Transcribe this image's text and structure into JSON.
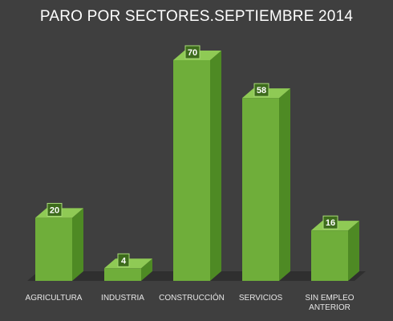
{
  "chart_data": {
    "type": "bar",
    "title": "PARO POR SECTORES.SEPTIEMBRE 2014",
    "categories": [
      "AGRICULTURA",
      "INDUSTRIA",
      "CONSTRUCCIÓN",
      "SERVICIOS",
      "SIN EMPLEO ANTERIOR"
    ],
    "values": [
      20,
      4,
      70,
      58,
      16
    ],
    "xlabel": "",
    "ylabel": "",
    "ylim": [
      0,
      70
    ],
    "grid": false,
    "legend": "none",
    "data_labels": true,
    "style": "3d-columns"
  },
  "colors": {
    "background": "#3f3f3f",
    "bar_front": "#6fae3a",
    "bar_top": "#8fca55",
    "bar_side": "#4e8a24",
    "floor": "#2f2f2f",
    "label_box_bg": "#3d6b1c",
    "label_box_border": "#a8d878"
  }
}
